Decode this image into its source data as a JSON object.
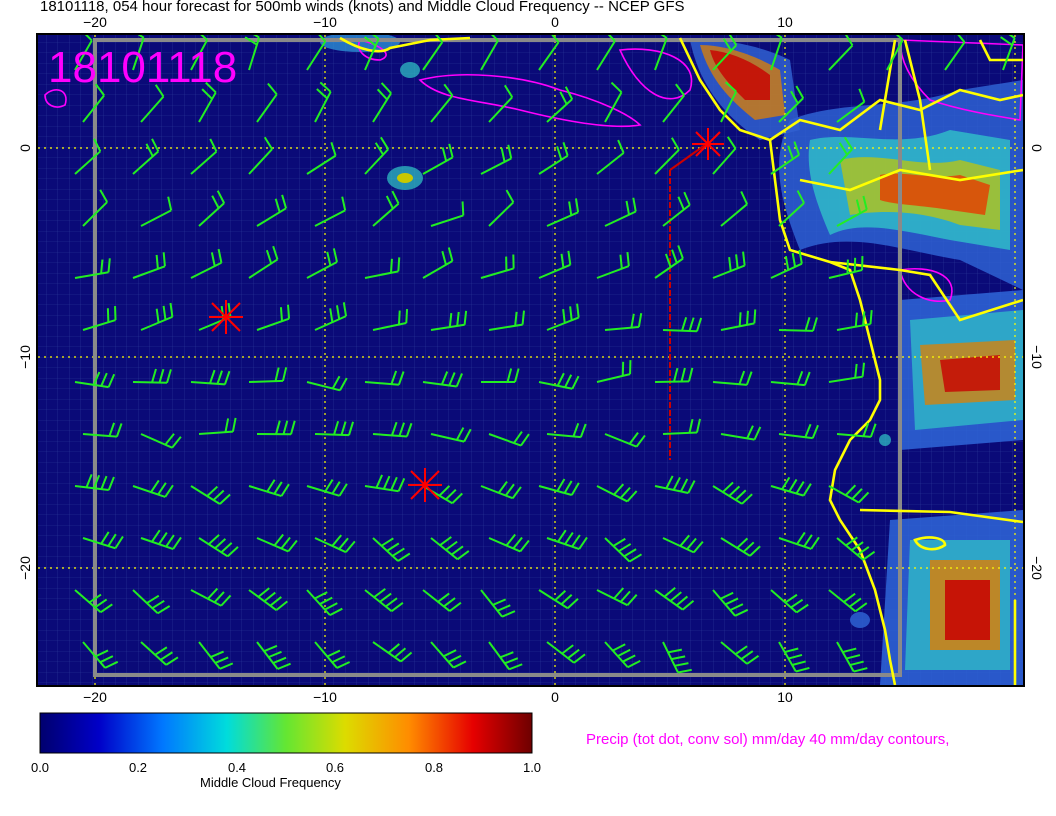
{
  "title": "18101118, 054 hour forecast for 500mb winds (knots) and Middle Cloud Frequency -- NCEP GFS",
  "stamp": "18101118",
  "precip_note": "Precip (tot dot, conv sol) mm/day 40 mm/day contours,",
  "colorbar": {
    "label": "Middle Cloud Frequency",
    "ticks": [
      "0.0",
      "0.2",
      "0.4",
      "0.6",
      "0.8",
      "1.0"
    ],
    "colors": [
      "#00006e",
      "#0000c8",
      "#0078ff",
      "#00dcdc",
      "#64e632",
      "#dcdc00",
      "#ff8c00",
      "#e60000",
      "#6e0000"
    ]
  },
  "axes": {
    "lon_ticks_top": [
      "−20",
      "−10",
      "0",
      "10"
    ],
    "lon_ticks_bottom": [
      "−20",
      "−10",
      "0",
      "10"
    ],
    "lat_ticks_left": [
      "0",
      "−10",
      "−20"
    ],
    "lat_ticks_right": [
      "0",
      "−10",
      "−20"
    ]
  },
  "colors": {
    "ocean": "#0a0a78",
    "barbs": "#22ee22",
    "coast": "#ffff00",
    "precip": "#ff00ff",
    "markers": "#ff0000",
    "grid": "#ffff00"
  }
}
